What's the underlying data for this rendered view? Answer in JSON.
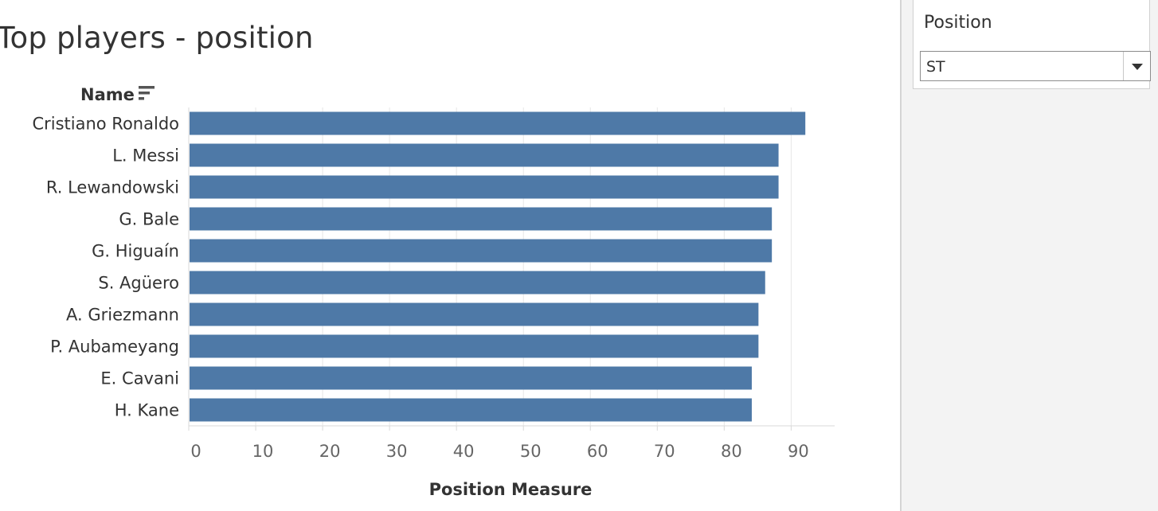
{
  "page_title": "Top players - position",
  "filter": {
    "title": "Position",
    "selected": "ST"
  },
  "icons": {
    "sort": "sort-descending-icon",
    "dropdown": "chevron-down-icon"
  },
  "colors": {
    "bar": "#4e79a7",
    "grid": "#e6e6e6",
    "text": "#333333",
    "axis_text": "#666666"
  },
  "chart_data": {
    "type": "bar",
    "orientation": "horizontal",
    "title": "Top players - position",
    "ylabel": "Name",
    "xlabel": "Position Measure",
    "categories": [
      "Cristiano Ronaldo",
      "L. Messi",
      "R. Lewandowski",
      "G. Bale",
      "G. Higuaín",
      "S. Agüero",
      "A. Griezmann",
      "P. Aubameyang",
      "E. Cavani",
      "H. Kane"
    ],
    "values": [
      92,
      88,
      88,
      87,
      87,
      86,
      85,
      85,
      84,
      84
    ],
    "xlim": [
      0,
      96.5
    ],
    "xticks": [
      0,
      10,
      20,
      30,
      40,
      50,
      60,
      70,
      80,
      90
    ],
    "grid": true
  }
}
